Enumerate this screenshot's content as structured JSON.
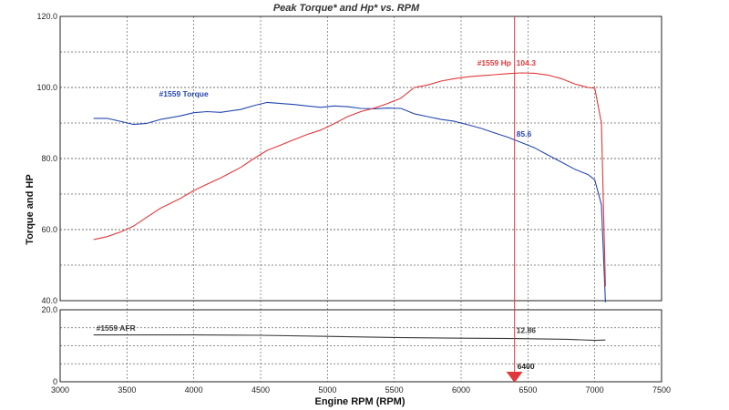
{
  "chart_data": {
    "type": "line",
    "title": "Peak Torque* and Hp* vs. RPM",
    "xlabel": "Engine RPM (RPM)",
    "ylabel": "Torque and HP",
    "grid": true,
    "x_ticks": [
      "3000",
      "3500",
      "4000",
      "4500",
      "5000",
      "5500",
      "6000",
      "6500",
      "7000",
      "7500"
    ],
    "xlim": [
      3000,
      7500
    ],
    "upper_panel": {
      "ylim": [
        40,
        120
      ],
      "y_ticks": [
        "40.0",
        "60.0",
        "80.0",
        "100.0",
        "120.0"
      ],
      "series": [
        {
          "name": "#1559 Torque",
          "color": "#2447b0",
          "x": [
            3250,
            3350,
            3450,
            3550,
            3650,
            3750,
            3900,
            4000,
            4100,
            4200,
            4350,
            4450,
            4550,
            4650,
            4750,
            4850,
            4950,
            5050,
            5150,
            5250,
            5350,
            5450,
            5550,
            5650,
            5750,
            5850,
            5950,
            6050,
            6150,
            6250,
            6350,
            6450,
            6550,
            6650,
            6750,
            6850,
            6950,
            7000,
            7050,
            7080
          ],
          "y": [
            91.3,
            91.3,
            90.5,
            89.6,
            89.9,
            91.0,
            92.0,
            92.9,
            93.2,
            93.0,
            93.8,
            94.9,
            95.8,
            95.5,
            95.2,
            94.8,
            94.4,
            94.8,
            94.6,
            94.1,
            94.0,
            94.2,
            94.1,
            92.6,
            91.8,
            91.0,
            90.5,
            89.5,
            88.5,
            87.2,
            86.0,
            84.5,
            83.0,
            81.0,
            79.0,
            77.0,
            75.5,
            74.0,
            67.0,
            39.5
          ]
        },
        {
          "name": "#1559 Hp",
          "color": "#e0383a",
          "x": [
            3250,
            3350,
            3450,
            3550,
            3650,
            3750,
            3900,
            4000,
            4100,
            4200,
            4350,
            4450,
            4550,
            4650,
            4750,
            4850,
            4950,
            5050,
            5150,
            5250,
            5350,
            5450,
            5550,
            5650,
            5750,
            5850,
            5950,
            6050,
            6150,
            6250,
            6350,
            6450,
            6550,
            6650,
            6750,
            6850,
            6950,
            7000,
            7050,
            7080
          ],
          "y": [
            57.2,
            58.0,
            59.3,
            61.0,
            63.5,
            66.0,
            68.8,
            71.0,
            72.8,
            74.5,
            77.5,
            80.0,
            82.3,
            83.8,
            85.3,
            86.8,
            88.0,
            89.8,
            91.8,
            93.2,
            94.2,
            95.5,
            97.0,
            100.0,
            100.7,
            101.8,
            102.5,
            103.0,
            103.3,
            103.6,
            103.9,
            104.1,
            104.0,
            103.5,
            102.5,
            101.0,
            100.0,
            99.8,
            90.0,
            44.0
          ]
        }
      ],
      "labels": [
        {
          "text": "#1559 Torque",
          "series": "#1559 Torque"
        },
        {
          "text": "#1559 Hp",
          "series": "#1559 Hp"
        },
        {
          "text": "104.3",
          "series": "#1559 Hp"
        },
        {
          "text": "85.6",
          "series": "#1559 Torque"
        }
      ]
    },
    "lower_panel": {
      "ylim": [
        0,
        20
      ],
      "y_ticks": [
        "0",
        "20.0"
      ],
      "series": [
        {
          "name": "#1559 AFR",
          "color": "#3a3a3a",
          "x": [
            3250,
            3500,
            4000,
            4500,
            5000,
            5500,
            6000,
            6400,
            6800,
            7000,
            7080
          ],
          "y": [
            13.0,
            13.0,
            13.0,
            12.9,
            12.6,
            12.3,
            12.1,
            12.0,
            11.8,
            11.5,
            11.6
          ]
        }
      ],
      "labels": [
        {
          "text": "#1559 AFR",
          "series": "#1559 AFR"
        },
        {
          "text": "12.86",
          "series": "#1559 AFR"
        }
      ]
    },
    "cursor": {
      "x": 6400,
      "label": "6400",
      "color": "#e0383a"
    }
  }
}
